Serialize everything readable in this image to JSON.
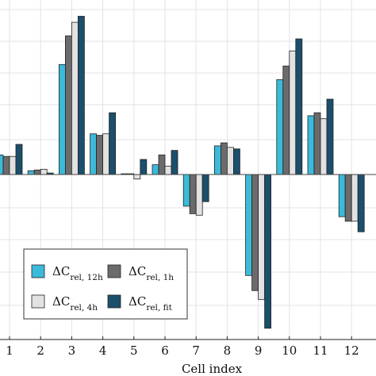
{
  "chart_data": {
    "type": "bar",
    "xlabel": "Cell index",
    "ylabel": "",
    "categories": [
      "1",
      "2",
      "3",
      "4",
      "5",
      "6",
      "7",
      "8",
      "9",
      "10",
      "11",
      "12"
    ],
    "ylim": [
      -1.0,
      1.0
    ],
    "grid": true,
    "legend_position": "bottom-left",
    "series": [
      {
        "key": "12h",
        "name": "ΔC",
        "subscript": "rel, 12h",
        "color": "#3bbad9",
        "values": [
          0.13,
          0.025,
          0.73,
          0.27,
          0.005,
          0.065,
          -0.21,
          0.19,
          -0.67,
          0.63,
          0.39,
          -0.28
        ]
      },
      {
        "key": "1h",
        "name": "ΔC",
        "subscript": "rel, 1h",
        "color": "#6b6b6b",
        "values": [
          0.12,
          0.03,
          0.92,
          0.26,
          0.005,
          0.13,
          -0.26,
          0.21,
          -0.77,
          0.72,
          0.41,
          -0.31
        ]
      },
      {
        "key": "4h",
        "name": "ΔC",
        "subscript": "rel, 4h",
        "color": "#e2e2e2",
        "values": [
          0.12,
          0.035,
          1.01,
          0.27,
          -0.03,
          0.055,
          -0.27,
          0.18,
          -0.83,
          0.82,
          0.37,
          -0.31
        ]
      },
      {
        "key": "fit",
        "name": "ΔC",
        "subscript": "rel, fit",
        "color": "#1b4f6b",
        "values": [
          0.2,
          0.01,
          1.05,
          0.41,
          0.1,
          0.16,
          -0.18,
          0.17,
          -1.02,
          0.9,
          0.5,
          -0.38
        ]
      }
    ]
  }
}
